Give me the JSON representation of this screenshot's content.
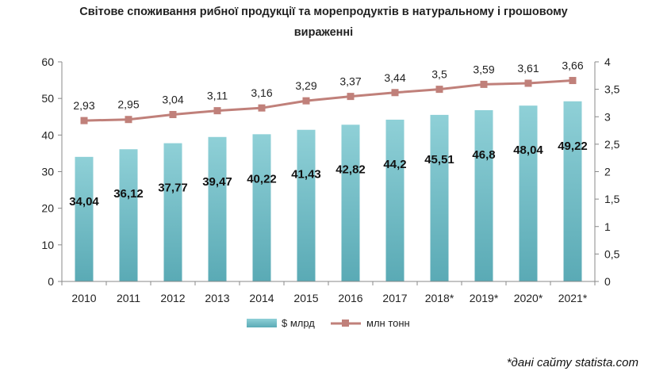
{
  "chart_data": {
    "type": "bar",
    "title_line1": "Світове споживання рибної продукції та морепродуктів в натуральному і грошовому",
    "title_line2": "вираженні",
    "categories": [
      "2010",
      "2011",
      "2012",
      "2013",
      "2014",
      "2015",
      "2016",
      "2017",
      "2018*",
      "2019*",
      "2020*",
      "2021*"
    ],
    "series": [
      {
        "name": "$ млрд",
        "type": "bar",
        "axis": "left",
        "color": "#6BBBC5",
        "values": [
          34.04,
          36.12,
          37.77,
          39.47,
          40.22,
          41.43,
          42.82,
          44.2,
          45.51,
          46.8,
          48.04,
          49.22
        ],
        "labels": [
          "34,04",
          "36,12",
          "37,77",
          "39,47",
          "40,22",
          "41,43",
          "42,82",
          "44,2",
          "45,51",
          "46,8",
          "48,04",
          "49,22"
        ]
      },
      {
        "name": "млн тонн",
        "type": "line",
        "axis": "right",
        "color": "#C0807A",
        "values": [
          2.93,
          2.95,
          3.04,
          3.11,
          3.16,
          3.29,
          3.37,
          3.44,
          3.5,
          3.59,
          3.61,
          3.66
        ],
        "labels": [
          "2,93",
          "2,95",
          "3,04",
          "3,11",
          "3,16",
          "3,29",
          "3,37",
          "3,44",
          "3,5",
          "3,59",
          "3,61",
          "3,66"
        ]
      }
    ],
    "y_left": {
      "min": 0,
      "max": 60,
      "ticks": [
        "0",
        "10",
        "20",
        "30",
        "40",
        "50",
        "60"
      ]
    },
    "y_right": {
      "min": 0,
      "max": 4,
      "ticks": [
        "0",
        "0,5",
        "1",
        "1,5",
        "2",
        "2,5",
        "3",
        "3,5",
        "4"
      ]
    },
    "grid": false,
    "legend_position": "bottom"
  },
  "source_note": "*дані сайту statista.com"
}
